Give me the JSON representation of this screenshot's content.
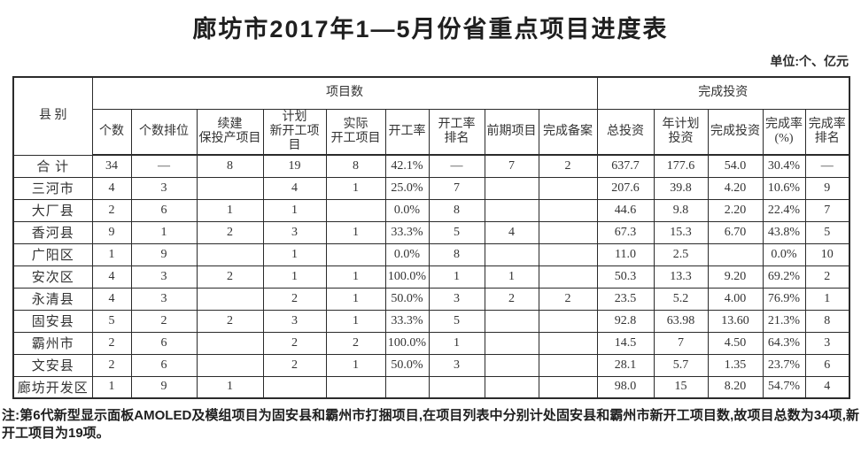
{
  "title": "廊坊市2017年1—5月份省重点项目进度表",
  "unit_label": "单位:个、亿元",
  "table": {
    "corner_header": "县 别",
    "group_headers": {
      "projects": "项目数",
      "investment": "完成投资"
    },
    "column_headers": [
      "个数",
      "个数排位",
      "续建\n保投产项目",
      "计划\n新开工项目",
      "实际\n开工项目",
      "开工率",
      "开工率\n排名",
      "前期项目",
      "完成备案",
      "总投资",
      "年计划\n投资",
      "完成投资",
      "完成率\n(%)",
      "完成率\n排名"
    ],
    "rows": [
      {
        "county": "合 计",
        "values": [
          "34",
          "—",
          "8",
          "19",
          "8",
          "42.1%",
          "—",
          "7",
          "2",
          "637.7",
          "177.6",
          "54.0",
          "30.4%",
          "—"
        ]
      },
      {
        "county": "三河市",
        "values": [
          "4",
          "3",
          "",
          "4",
          "1",
          "25.0%",
          "7",
          "",
          "",
          "207.6",
          "39.8",
          "4.20",
          "10.6%",
          "9"
        ]
      },
      {
        "county": "大厂县",
        "values": [
          "2",
          "6",
          "1",
          "1",
          "",
          "0.0%",
          "8",
          "",
          "",
          "44.6",
          "9.8",
          "2.20",
          "22.4%",
          "7"
        ]
      },
      {
        "county": "香河县",
        "values": [
          "9",
          "1",
          "2",
          "3",
          "1",
          "33.3%",
          "5",
          "4",
          "",
          "67.3",
          "15.3",
          "6.70",
          "43.8%",
          "5"
        ]
      },
      {
        "county": "广阳区",
        "values": [
          "1",
          "9",
          "",
          "1",
          "",
          "0.0%",
          "8",
          "",
          "",
          "11.0",
          "2.5",
          "",
          "0.0%",
          "10"
        ]
      },
      {
        "county": "安次区",
        "values": [
          "4",
          "3",
          "2",
          "1",
          "1",
          "100.0%",
          "1",
          "1",
          "",
          "50.3",
          "13.3",
          "9.20",
          "69.2%",
          "2"
        ]
      },
      {
        "county": "永清县",
        "values": [
          "4",
          "3",
          "",
          "2",
          "1",
          "50.0%",
          "3",
          "2",
          "2",
          "23.5",
          "5.2",
          "4.00",
          "76.9%",
          "1"
        ]
      },
      {
        "county": "固安县",
        "values": [
          "5",
          "2",
          "2",
          "3",
          "1",
          "33.3%",
          "5",
          "",
          "",
          "92.8",
          "63.98",
          "13.60",
          "21.3%",
          "8"
        ]
      },
      {
        "county": "霸州市",
        "values": [
          "2",
          "6",
          "",
          "2",
          "2",
          "100.0%",
          "1",
          "",
          "",
          "14.5",
          "7",
          "4.50",
          "64.3%",
          "3"
        ]
      },
      {
        "county": "文安县",
        "values": [
          "2",
          "6",
          "",
          "2",
          "1",
          "50.0%",
          "3",
          "",
          "",
          "28.1",
          "5.7",
          "1.35",
          "23.7%",
          "6"
        ]
      },
      {
        "county": "廊坊开发区",
        "values": [
          "1",
          "9",
          "1",
          "",
          "",
          "",
          "",
          "",
          "",
          "98.0",
          "15",
          "8.20",
          "54.7%",
          "4"
        ]
      }
    ]
  },
  "footnote": "注:第6代新型显示面板AMOLED及模组项目为固安县和霸州市打捆项目,在项目列表中分别计处固安县和霸州市新开工项目数,故项目总数为34项,新开工项目为19项。"
}
